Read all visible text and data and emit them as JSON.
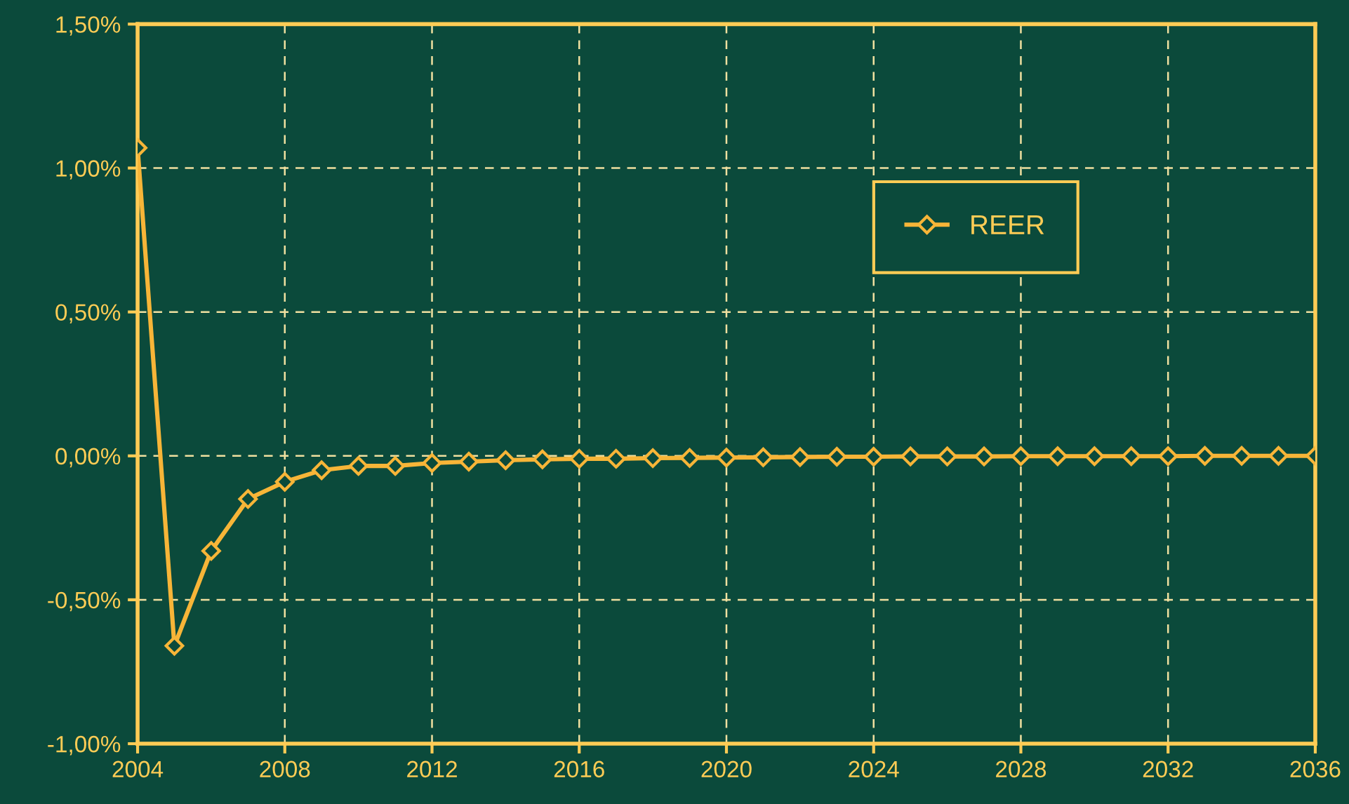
{
  "chart_data": {
    "type": "line",
    "x": [
      2004,
      2005,
      2006,
      2007,
      2008,
      2009,
      2010,
      2011,
      2012,
      2013,
      2014,
      2015,
      2016,
      2017,
      2018,
      2019,
      2020,
      2021,
      2022,
      2023,
      2024,
      2025,
      2026,
      2027,
      2028,
      2029,
      2030,
      2031,
      2032,
      2033,
      2034,
      2035,
      2036
    ],
    "series": [
      {
        "name": "REER",
        "color": "#f7b538",
        "values": [
          1.07,
          -0.66,
          -0.33,
          -0.15,
          -0.09,
          -0.05,
          -0.035,
          -0.035,
          -0.025,
          -0.02,
          -0.015,
          -0.012,
          -0.01,
          -0.01,
          -0.008,
          -0.007,
          -0.006,
          -0.005,
          -0.004,
          -0.003,
          -0.003,
          -0.002,
          -0.002,
          -0.002,
          -0.001,
          -0.001,
          -0.001,
          -0.001,
          -0.001,
          0,
          0,
          0,
          0
        ]
      }
    ],
    "xlim": [
      2004,
      2036
    ],
    "xticks": [
      2004,
      2008,
      2012,
      2016,
      2020,
      2024,
      2028,
      2032,
      2036
    ],
    "ylim": [
      -1.0,
      1.5
    ],
    "yticks": [
      {
        "value": -1.0,
        "label": "-1,00%"
      },
      {
        "value": -0.5,
        "label": "-0,50%"
      },
      {
        "value": 0,
        "label": "0,00%"
      },
      {
        "value": 0.5,
        "label": "0,50%"
      },
      {
        "value": 1.0,
        "label": "1,00%"
      },
      {
        "value": 1.5,
        "label": "1,50%"
      }
    ],
    "grid": true,
    "legend": "top right",
    "marker": "diamond",
    "line_style": "solid"
  }
}
